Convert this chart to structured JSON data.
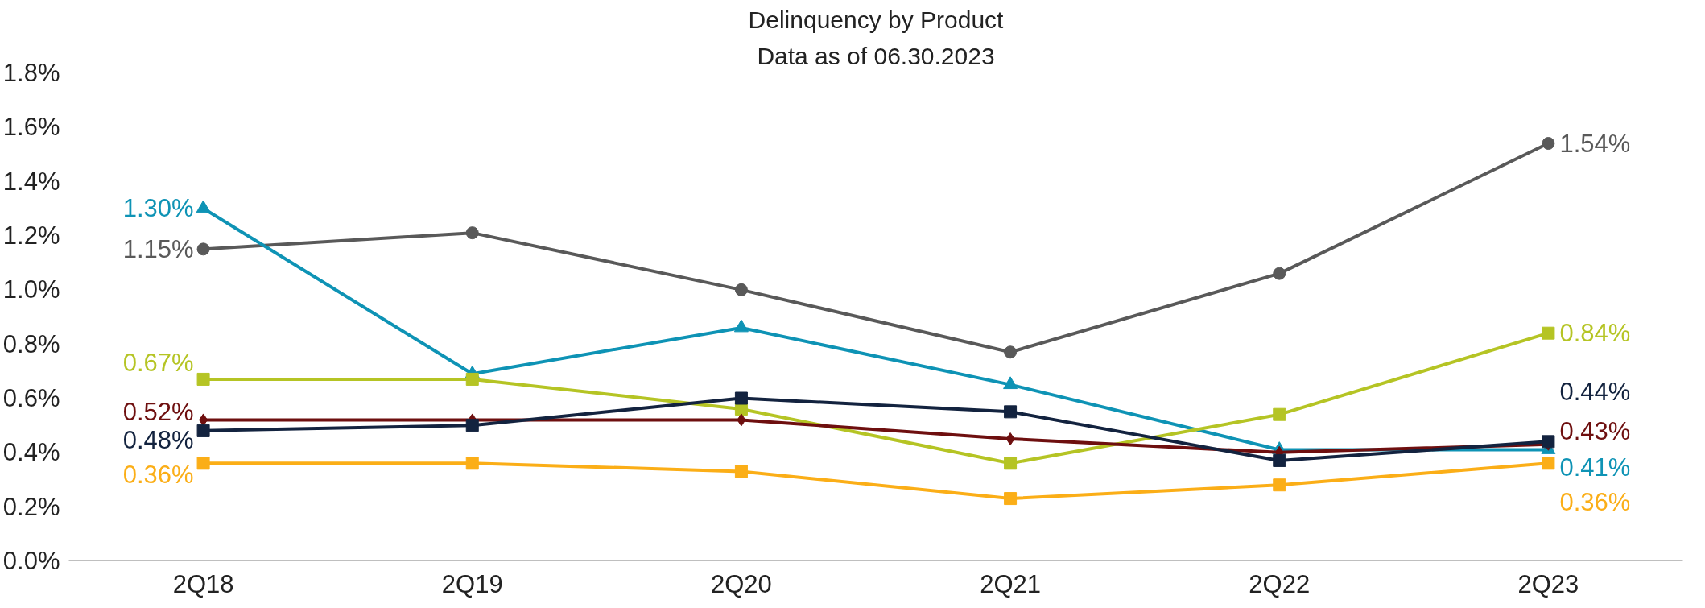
{
  "chart_data": {
    "type": "line",
    "title": "Delinquency by Product",
    "subtitle": "Data as of 06.30.2023",
    "categories": [
      "2Q18",
      "2Q19",
      "2Q20",
      "2Q21",
      "2Q22",
      "2Q23"
    ],
    "ylim": [
      0,
      1.8
    ],
    "yticks": [
      {
        "value": 0,
        "label": "0.0%"
      },
      {
        "value": 0.2,
        "label": "0.2%"
      },
      {
        "value": 0.4,
        "label": "0.4%"
      },
      {
        "value": 0.6,
        "label": "0.6%"
      },
      {
        "value": 0.8,
        "label": "0.8%"
      },
      {
        "value": 1.0,
        "label": "1.0%"
      },
      {
        "value": 1.2,
        "label": "1.2%"
      },
      {
        "value": 1.4,
        "label": "1.4%"
      },
      {
        "value": 1.6,
        "label": "1.6%"
      },
      {
        "value": 1.8,
        "label": "1.8%"
      }
    ],
    "grid": false,
    "series": [
      {
        "color": "#595959",
        "marker": "circle",
        "values": [
          1.15,
          1.21,
          1.0,
          0.77,
          1.06,
          1.54
        ],
        "value_labels": [
          "1.15%",
          null,
          null,
          null,
          null,
          "1.54%"
        ]
      },
      {
        "color": "#0e93b5",
        "marker": "triangle",
        "values": [
          1.3,
          0.69,
          0.86,
          0.65,
          0.41,
          0.41
        ],
        "value_labels": [
          "1.30%",
          null,
          null,
          null,
          null,
          "0.41%"
        ]
      },
      {
        "color": "#b5c424",
        "marker": "square",
        "values": [
          0.67,
          0.67,
          0.56,
          0.36,
          0.54,
          0.84
        ],
        "value_labels": [
          "0.67%",
          null,
          null,
          null,
          null,
          "0.84%"
        ]
      },
      {
        "color": "#6e0f0f",
        "marker": "diamond",
        "values": [
          0.52,
          0.52,
          0.52,
          0.45,
          0.4,
          0.43
        ],
        "value_labels": [
          "0.52%",
          null,
          null,
          null,
          null,
          "0.43%"
        ]
      },
      {
        "color": "#13233f",
        "marker": "square",
        "values": [
          0.48,
          0.5,
          0.6,
          0.55,
          0.37,
          0.44
        ],
        "value_labels": [
          "0.48%",
          null,
          null,
          null,
          null,
          "0.44%"
        ]
      },
      {
        "color": "#fbae17",
        "marker": "square",
        "values": [
          0.36,
          0.36,
          0.33,
          0.23,
          0.28,
          0.36
        ],
        "value_labels": [
          "0.36%",
          null,
          null,
          null,
          null,
          "0.36%"
        ]
      }
    ]
  }
}
